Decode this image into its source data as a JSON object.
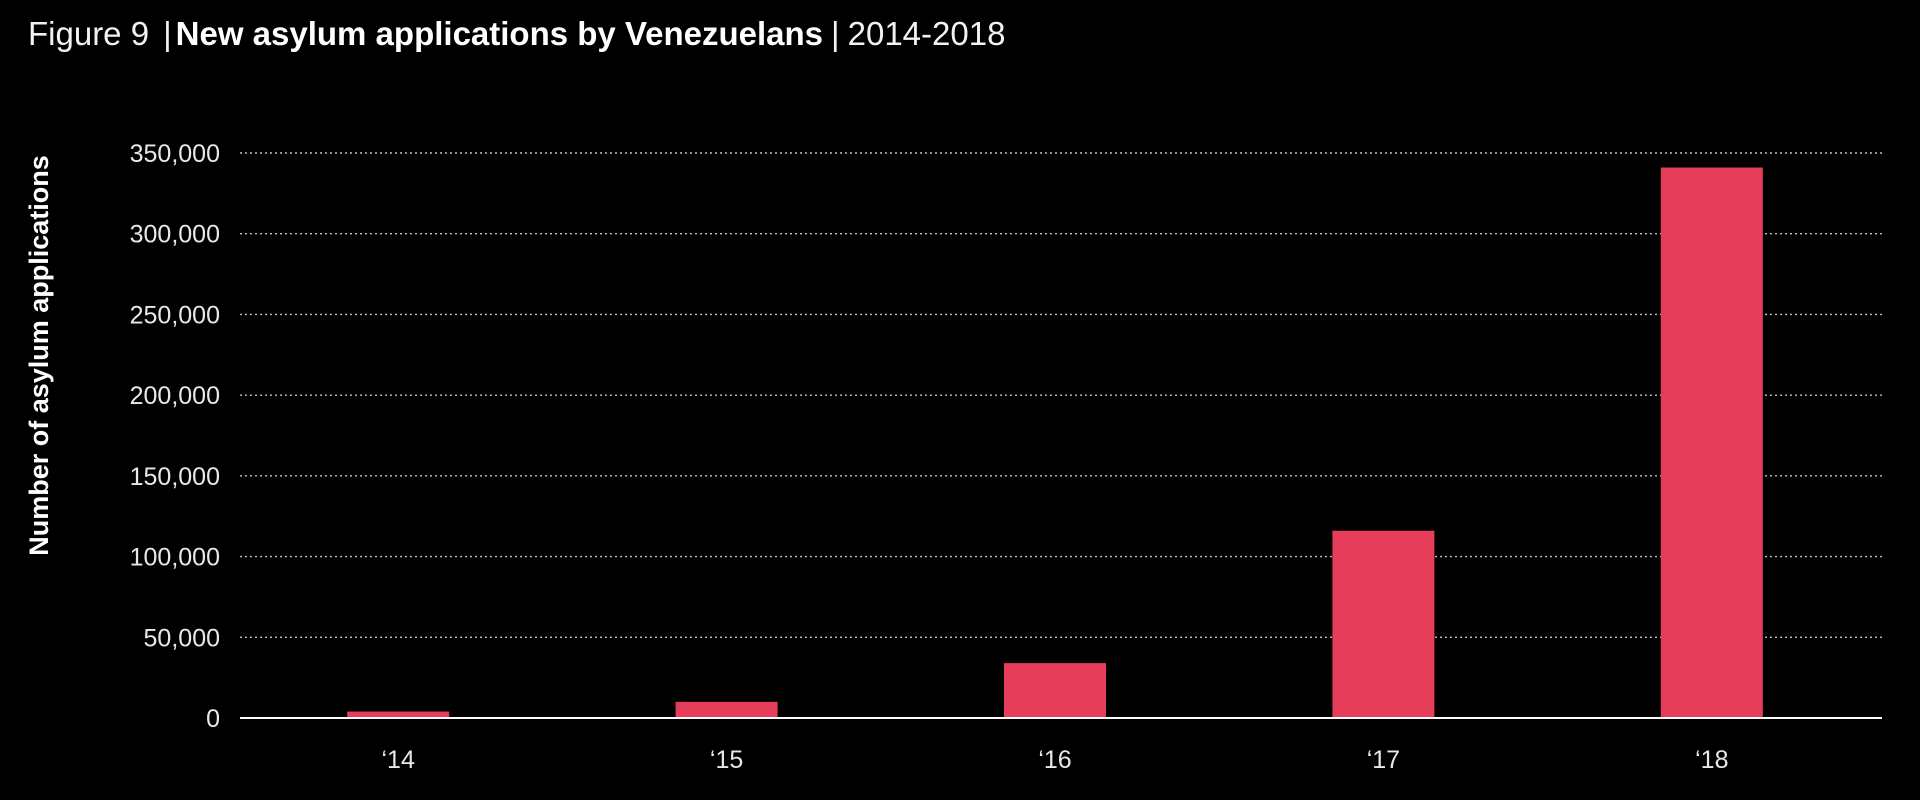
{
  "figure": {
    "label": "Figure 9",
    "separator": "|",
    "title": "New asylum applications by Venezuelans",
    "separator2": "|",
    "period": "2014-2018"
  },
  "colors": {
    "background": "#000000",
    "bar": "#e63d5a",
    "grid": "#bfbfbf",
    "axis": "#ffffff",
    "text": "#e8e8e8"
  },
  "chart_data": {
    "type": "bar",
    "title": "New asylum applications by Venezuelans",
    "xlabel": "",
    "ylabel": "Number of asylum applications",
    "categories": [
      "‘14",
      "‘15",
      "‘16",
      "‘17",
      "‘18"
    ],
    "values": [
      4000,
      10000,
      34000,
      116000,
      341000
    ],
    "ylim": [
      0,
      350000
    ],
    "yticks": [
      0,
      50000,
      100000,
      150000,
      200000,
      250000,
      300000,
      350000
    ],
    "ytick_labels": [
      "0",
      "50,000",
      "100,000",
      "150,000",
      "200,000",
      "250,000",
      "300,000",
      "350,000"
    ],
    "grid": "horizontal-dotted",
    "legend": "none"
  }
}
